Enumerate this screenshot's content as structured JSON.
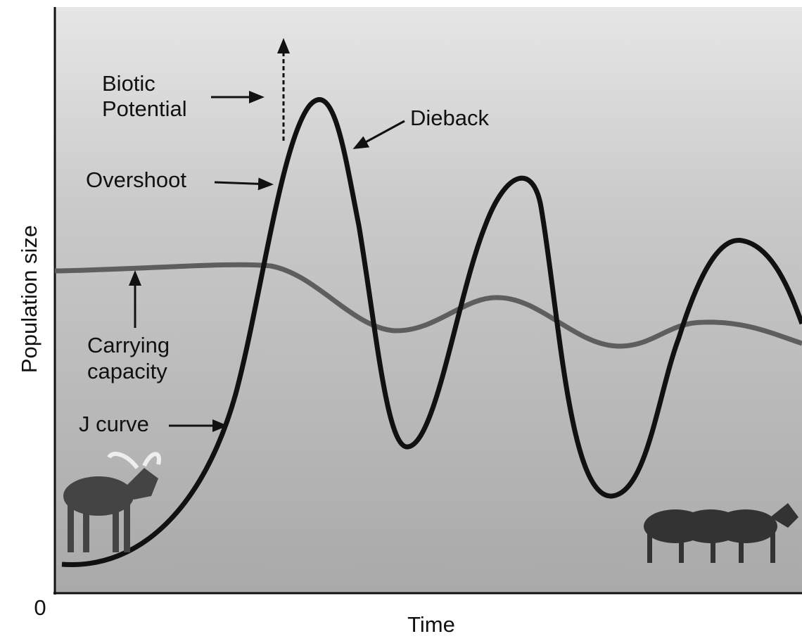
{
  "axes": {
    "y_label": "Population size",
    "x_label": "Time",
    "origin": "0"
  },
  "labels": {
    "biotic_potential": [
      "Biotic",
      "Potential"
    ],
    "dieback": "Dieback",
    "overshoot": "Overshoot",
    "carrying_capacity": [
      "Carrying",
      "capacity"
    ],
    "j_curve": "J curve"
  }
}
